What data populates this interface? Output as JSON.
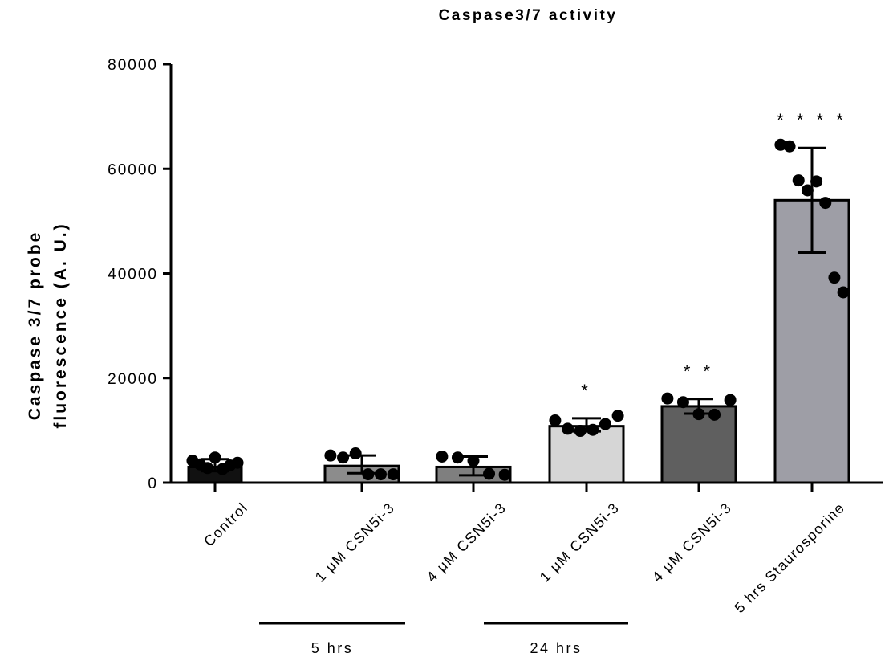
{
  "chart_data": {
    "type": "bar",
    "title": "Caspase3/7 activity",
    "ylabel_lines": [
      "Caspase 3/7 probe",
      "fluorescence (A. U.)"
    ],
    "xlabel": "",
    "ylim": [
      0,
      80000
    ],
    "yticks": [
      0,
      20000,
      40000,
      60000,
      80000
    ],
    "categories": [
      "Control",
      "1 μM CSN5i-3",
      "4 μM CSN5i-3",
      "1 μM CSN5i-3",
      "4 μM CSN5i-3",
      "5 hrs Staurosporine"
    ],
    "values": [
      3000,
      3200,
      3000,
      10800,
      14600,
      54000
    ],
    "error_lo": [
      2200,
      1800,
      1400,
      9800,
      13200,
      44000
    ],
    "error_hi": [
      4500,
      5200,
      5000,
      12300,
      16000,
      64000
    ],
    "bar_colors": [
      "#111111",
      "#8c8c8c",
      "#7f7f7f",
      "#d6d6d6",
      "#5f5f5f",
      "#9e9ea6"
    ],
    "significance": [
      "",
      "",
      "",
      "*",
      "**",
      "****"
    ],
    "points": [
      [
        4200,
        3500,
        2800,
        4800,
        2600,
        3300,
        3800
      ],
      [
        5200,
        4800,
        5600,
        1600,
        1600,
        1600
      ],
      [
        5000,
        4800,
        4200,
        1700,
        1500
      ],
      [
        11900,
        10300,
        9900,
        10100,
        11200,
        12800
      ],
      [
        16100,
        15400,
        13100,
        13000,
        15800
      ],
      [
        64600,
        64300,
        57800,
        55900,
        57600,
        53500,
        39200,
        36400
      ]
    ],
    "groups": [
      {
        "label": "5 hrs",
        "categories": [
          1,
          2
        ]
      },
      {
        "label": "24 hrs",
        "categories": [
          3,
          4
        ]
      }
    ],
    "grid": false,
    "legend": "none"
  }
}
